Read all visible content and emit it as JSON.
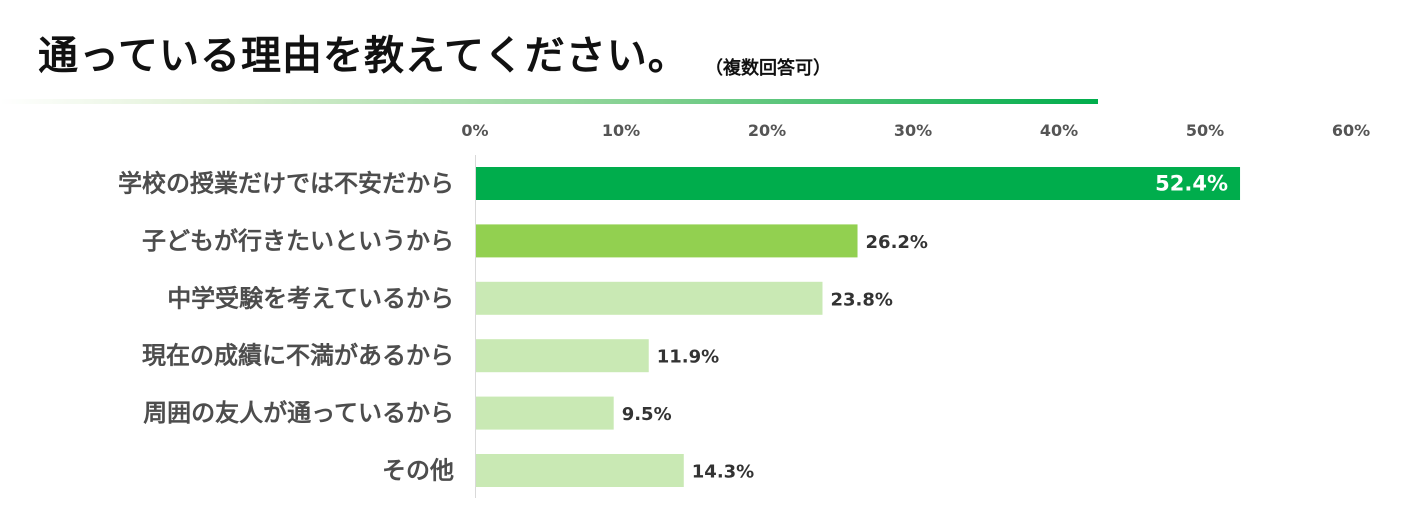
{
  "title": "通っている理由を教えてください。",
  "subtitle": "（複数回答可）",
  "colors": {
    "top": "#00ad4c",
    "second": "#92d050",
    "rest": "#c9e9b4",
    "axis": "#d9d9d9"
  },
  "chart_data": {
    "type": "bar",
    "orientation": "horizontal",
    "categories": [
      "学校の授業だけでは不安だから",
      "子どもが行きたいというから",
      "中学受験を考えているから",
      "現在の成績に不満があるから",
      "周囲の友人が通っているから",
      "その他"
    ],
    "values": [
      52.4,
      26.2,
      23.8,
      11.9,
      9.5,
      14.3
    ],
    "value_labels": [
      "52.4%",
      "26.2%",
      "23.8%",
      "11.9%",
      "9.5%",
      "14.3%"
    ],
    "xlim": [
      0,
      60
    ],
    "xticks": [
      0,
      10,
      20,
      30,
      40,
      50,
      60
    ],
    "xtick_labels": [
      "0%",
      "10%",
      "20%",
      "30%",
      "40%",
      "50%",
      "60%"
    ],
    "xaxis_position": "top",
    "grid": false,
    "legend": "none"
  }
}
